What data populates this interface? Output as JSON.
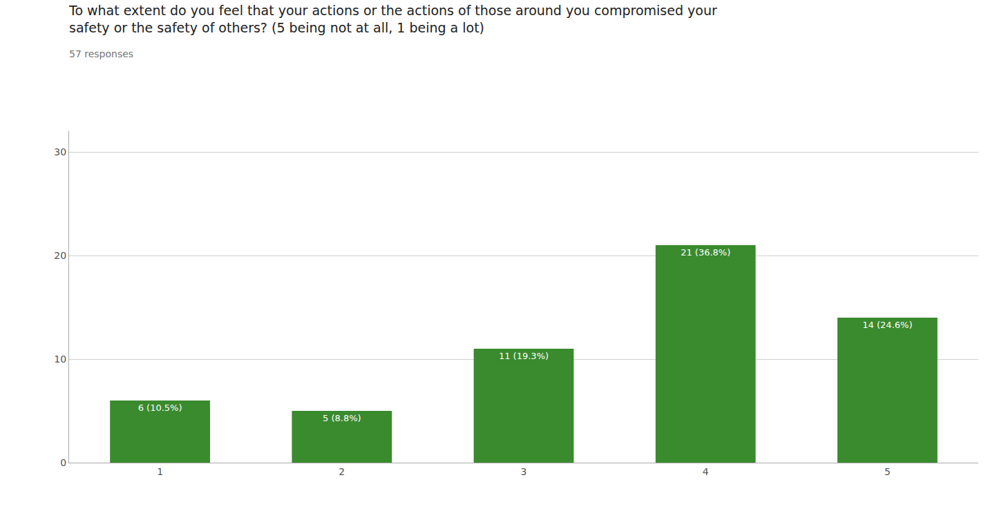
{
  "chart_data": {
    "type": "bar",
    "title": "To what extent do you feel that your actions or the actions of those around you compromised your\nsafety or the safety of others? (5 being not at all, 1 being a lot)",
    "subtitle": "57 responses",
    "x": [
      1,
      2,
      3,
      4,
      5
    ],
    "values": [
      6,
      5,
      11,
      21,
      14
    ],
    "value_labels": [
      "6 (10.5%)",
      "5 (8.8%)",
      "11 (19.3%)",
      "21 (36.8%)",
      "14 (24.6%)"
    ],
    "data_labels": true,
    "color": "#3a8a2e",
    "xlim": [
      0.5,
      5.5
    ],
    "xticks": [
      1,
      2,
      3,
      4,
      5
    ],
    "ylim": [
      0,
      32
    ],
    "yticks": [
      0,
      10,
      20,
      30
    ],
    "grid": true
  }
}
